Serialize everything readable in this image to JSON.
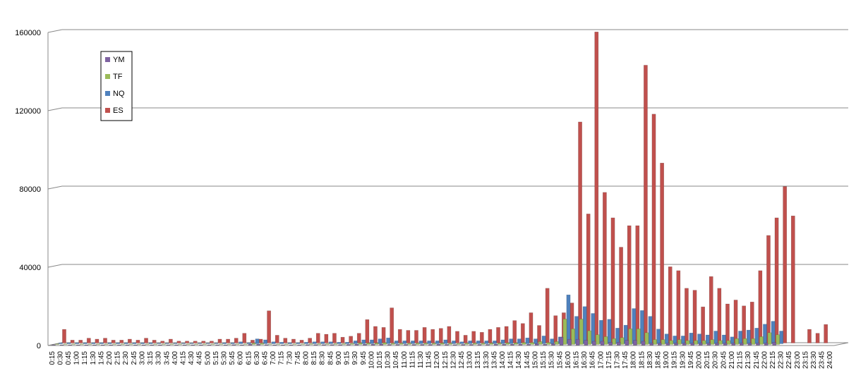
{
  "chart_data": {
    "type": "bar3d",
    "categories": [
      "0:15",
      "0:30",
      "0:45",
      "1:00",
      "1:15",
      "1:30",
      "1:45",
      "2:00",
      "2:15",
      "2:30",
      "2:45",
      "3:00",
      "3:15",
      "3:30",
      "3:45",
      "4:00",
      "4:15",
      "4:30",
      "4:45",
      "5:00",
      "5:15",
      "5:30",
      "5:45",
      "6:00",
      "6:15",
      "6:30",
      "6:45",
      "7:00",
      "7:15",
      "7:30",
      "7:45",
      "8:00",
      "8:15",
      "8:30",
      "8:45",
      "9:00",
      "9:15",
      "9:30",
      "9:45",
      "10:00",
      "10:15",
      "10:30",
      "10:45",
      "11:00",
      "11:15",
      "11:30",
      "11:45",
      "12:00",
      "12:15",
      "12:30",
      "12:45",
      "13:00",
      "13:15",
      "13:30",
      "13:45",
      "14:00",
      "14:15",
      "14:30",
      "14:45",
      "15:00",
      "15:15",
      "15:30",
      "15:45",
      "16:00",
      "16:15",
      "16:30",
      "16:45",
      "17:00",
      "17:15",
      "17:30",
      "17:45",
      "18:00",
      "18:15",
      "18:30",
      "18:45",
      "19:00",
      "19:15",
      "19:30",
      "19:45",
      "20:00",
      "20:15",
      "20:30",
      "20:45",
      "21:00",
      "21:15",
      "21:30",
      "21:45",
      "22:00",
      "22:15",
      "22:30",
      "22:45",
      "23:00",
      "23:15",
      "23:30",
      "23:45",
      "24:00"
    ],
    "series": [
      {
        "name": "YM",
        "color": "#7e62a1",
        "values": [
          200,
          200,
          200,
          200,
          200,
          200,
          200,
          200,
          200,
          200,
          200,
          200,
          200,
          200,
          200,
          200,
          200,
          200,
          200,
          200,
          200,
          200,
          300,
          200,
          500,
          500,
          300,
          200,
          200,
          200,
          200,
          300,
          300,
          300,
          300,
          300,
          400,
          500,
          500,
          500,
          600,
          400,
          400,
          400,
          400,
          400,
          400,
          500,
          400,
          300,
          400,
          400,
          400,
          400,
          500,
          500,
          500,
          500,
          500,
          800,
          500,
          800,
          4000,
          3000,
          3000,
          2500,
          2000,
          2000,
          1500,
          1500,
          2500,
          2500,
          2000,
          1000,
          1000,
          1000,
          1000,
          1000,
          1000,
          1000,
          1000,
          1000,
          1000,
          1000,
          1000,
          1000,
          1000,
          1000,
          1500,
          0,
          0,
          0,
          0,
          0,
          0,
          0
        ]
      },
      {
        "name": "TF",
        "color": "#9bbb59",
        "values": [
          300,
          300,
          300,
          300,
          300,
          300,
          300,
          300,
          300,
          300,
          300,
          300,
          300,
          300,
          300,
          300,
          300,
          300,
          300,
          300,
          300,
          300,
          300,
          300,
          600,
          600,
          300,
          300,
          300,
          300,
          300,
          400,
          400,
          400,
          400,
          400,
          500,
          800,
          700,
          700,
          900,
          600,
          600,
          600,
          600,
          600,
          600,
          700,
          600,
          500,
          600,
          600,
          600,
          700,
          700,
          800,
          800,
          1000,
          1000,
          1500,
          1000,
          1500,
          13000,
          8000,
          13000,
          7000,
          5000,
          4000,
          3000,
          3500,
          8000,
          8000,
          6000,
          2500,
          2500,
          2000,
          2500,
          2000,
          2000,
          2000,
          2500,
          2000,
          2000,
          3000,
          3000,
          3000,
          4000,
          6000,
          5000,
          0,
          0,
          0,
          0,
          0,
          0,
          0
        ]
      },
      {
        "name": "NQ",
        "color": "#4f81bd",
        "values": [
          500,
          500,
          500,
          500,
          500,
          500,
          500,
          500,
          500,
          500,
          500,
          500,
          300,
          300,
          300,
          300,
          300,
          300,
          300,
          300,
          500,
          500,
          1000,
          500,
          2500,
          2000,
          1000,
          800,
          500,
          500,
          800,
          1000,
          1000,
          1000,
          800,
          800,
          1500,
          2000,
          2000,
          2500,
          3000,
          1500,
          1500,
          1500,
          1500,
          1500,
          1500,
          2000,
          1500,
          1000,
          1500,
          1500,
          1500,
          1500,
          2000,
          2500,
          2500,
          3000,
          2500,
          4000,
          2500,
          3500,
          25000,
          14000,
          19000,
          15500,
          12000,
          12500,
          8000,
          9500,
          18000,
          17000,
          14000,
          7500,
          5000,
          4000,
          4000,
          5500,
          5000,
          4500,
          6500,
          4500,
          3500,
          6500,
          7000,
          8000,
          10000,
          11500,
          6500,
          0,
          0,
          0,
          0,
          0,
          0,
          0
        ]
      },
      {
        "name": "ES",
        "color": "#c0504d",
        "values": [
          7000,
          1500,
          1500,
          2500,
          2000,
          2500,
          1500,
          1500,
          2000,
          1500,
          2500,
          1500,
          1000,
          2000,
          1000,
          1000,
          1000,
          1000,
          1000,
          2000,
          2000,
          2500,
          5000,
          1500,
          2000,
          16500,
          4000,
          2500,
          2000,
          1500,
          2500,
          5000,
          4500,
          5000,
          3000,
          3500,
          5000,
          12000,
          8500,
          8000,
          18000,
          7000,
          6500,
          6500,
          8000,
          7000,
          7500,
          8500,
          6000,
          4000,
          6000,
          5500,
          7000,
          8000,
          8500,
          11500,
          10000,
          15500,
          9000,
          28000,
          14000,
          15500,
          20500,
          113000,
          66000,
          159000,
          77000,
          64000,
          49000,
          60000,
          60000,
          142000,
          117000,
          92000,
          39000,
          37000,
          28000,
          27000,
          18500,
          34000,
          28000,
          20000,
          22000,
          19000,
          21000,
          37000,
          55000,
          64000,
          80000,
          65000,
          0,
          7000,
          5000,
          9500,
          0,
          0
        ]
      }
    ],
    "ylim": [
      0,
      160000
    ],
    "yticks": [
      0,
      40000,
      80000,
      120000,
      160000
    ],
    "grid": true
  }
}
